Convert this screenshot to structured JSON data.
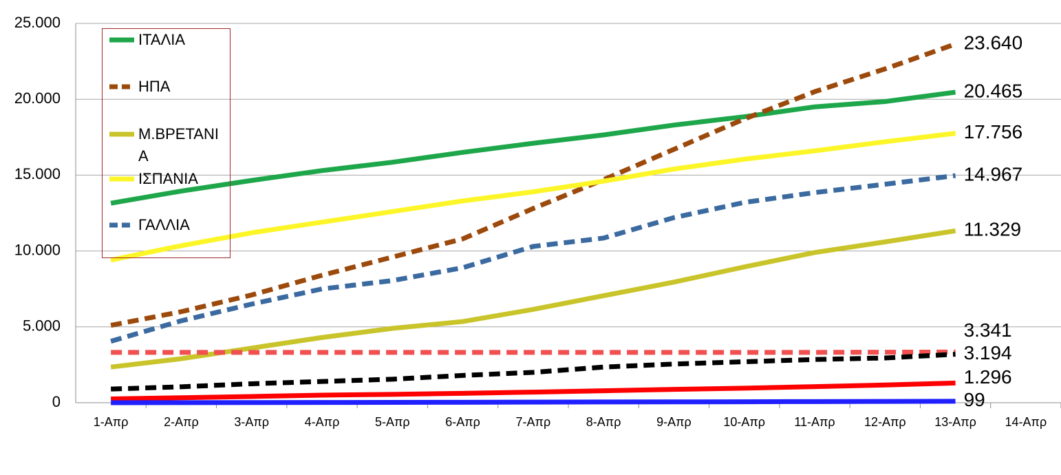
{
  "chart_data": {
    "type": "line",
    "categories": [
      "1-Απρ",
      "2-Απρ",
      "3-Απρ",
      "4-Απρ",
      "5-Απρ",
      "6-Απρ",
      "7-Απρ",
      "8-Απρ",
      "9-Απρ",
      "10-Απρ",
      "11-Απρ",
      "12-Απρ",
      "13-Απρ",
      "14-Απρ"
    ],
    "ylim": [
      0,
      25000
    ],
    "yticks": [
      0,
      {
        "value": 5000,
        "label": "5.000"
      },
      {
        "value": 10000,
        "label": "10.000"
      },
      {
        "value": 15000,
        "label": "15.000"
      },
      {
        "value": 20000,
        "label": "20.000"
      },
      {
        "value": 25000,
        "label": "25.000"
      }
    ],
    "grid": true,
    "legend": "upper left",
    "series": [
      {
        "name": "ΙΤΑΛΙΑ",
        "color": "#1ea64a",
        "dashed": false,
        "values": [
          13150,
          13950,
          14650,
          15300,
          15850,
          16500,
          17100,
          17650,
          18300,
          18850,
          19500,
          19850,
          20465,
          null
        ],
        "value_labels": [
          null,
          null,
          null,
          null,
          null,
          null,
          null,
          null,
          null,
          null,
          null,
          null,
          "20.465",
          null
        ]
      },
      {
        "name": "ΗΠΑ",
        "color": "#9c4a0c",
        "dashed": true,
        "values": [
          5100,
          6000,
          7100,
          8400,
          9600,
          10800,
          12800,
          14700,
          16700,
          18700,
          20500,
          22000,
          23640,
          null
        ],
        "value_labels": [
          null,
          null,
          null,
          null,
          null,
          null,
          null,
          null,
          null,
          null,
          null,
          null,
          "23.640",
          null
        ]
      },
      {
        "name": "Μ.ΒΡΕΤΑΝΙΑ",
        "color": "#c8c42a",
        "dashed": false,
        "values": [
          2350,
          2900,
          3600,
          4300,
          4900,
          5350,
          6150,
          7050,
          7950,
          8950,
          9900,
          10600,
          11329,
          null
        ],
        "value_labels": [
          null,
          null,
          null,
          null,
          null,
          null,
          null,
          null,
          null,
          null,
          null,
          null,
          "11.329",
          null
        ]
      },
      {
        "name": "ΙΣΠΑΝΙΑ",
        "color": "#fcf628",
        "dashed": false,
        "values": [
          9400,
          10350,
          11200,
          11900,
          12600,
          13300,
          13900,
          14600,
          15400,
          16050,
          16600,
          17200,
          17756,
          null
        ],
        "value_labels": [
          null,
          null,
          null,
          null,
          null,
          null,
          null,
          null,
          null,
          null,
          null,
          null,
          "17.756",
          null
        ]
      },
      {
        "name": "ΓΑΛΛΙΑ",
        "color": "#3b6aa0",
        "dashed": true,
        "values": [
          4050,
          5400,
          6500,
          7500,
          8050,
          8900,
          10300,
          10850,
          12200,
          13200,
          13850,
          14400,
          14967,
          null
        ],
        "value_labels": [
          null,
          null,
          null,
          null,
          null,
          null,
          null,
          null,
          null,
          null,
          null,
          null,
          "14.967",
          null
        ]
      },
      {
        "color": "#f05050",
        "dashed": true,
        "values": [
          3320,
          3320,
          3320,
          3320,
          3320,
          3320,
          3320,
          3320,
          3320,
          3320,
          3320,
          3330,
          3341,
          null
        ],
        "value_labels": [
          null,
          null,
          null,
          null,
          null,
          null,
          null,
          null,
          null,
          null,
          null,
          null,
          "3.341",
          null
        ]
      },
      {
        "color": "#000000",
        "dashed": true,
        "values": [
          900,
          1050,
          1250,
          1400,
          1550,
          1800,
          2000,
          2350,
          2550,
          2700,
          2850,
          2950,
          3194,
          null
        ],
        "value_labels": [
          null,
          null,
          null,
          null,
          null,
          null,
          null,
          null,
          null,
          null,
          null,
          null,
          "3.194",
          null
        ]
      },
      {
        "color": "#ff0000",
        "dashed": false,
        "values": [
          250,
          330,
          410,
          500,
          550,
          620,
          700,
          790,
          880,
          960,
          1060,
          1170,
          1296,
          null
        ],
        "value_labels": [
          null,
          null,
          null,
          null,
          null,
          null,
          null,
          null,
          null,
          null,
          null,
          null,
          "1.296",
          null
        ]
      },
      {
        "color": "#2020ff",
        "dashed": false,
        "values": [
          0,
          5,
          10,
          15,
          20,
          30,
          40,
          50,
          55,
          65,
          75,
          85,
          99,
          null
        ],
        "value_labels": [
          null,
          null,
          null,
          null,
          null,
          null,
          null,
          null,
          null,
          null,
          null,
          null,
          "99",
          null
        ]
      }
    ]
  }
}
